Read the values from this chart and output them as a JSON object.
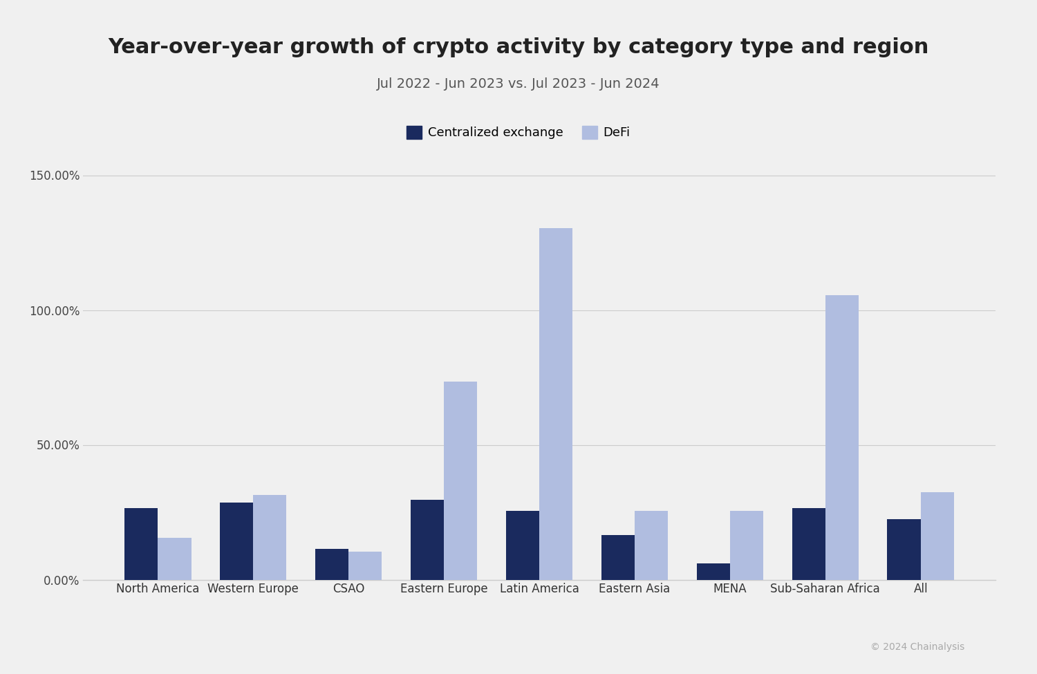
{
  "title": "Year-over-year growth of crypto activity by category type and region",
  "subtitle": "Jul 2022 - Jun 2023 vs. Jul 2023 - Jun 2024",
  "categories": [
    "North America",
    "Western Europe",
    "CSAO",
    "Eastern Europe",
    "Latin America",
    "Eastern Asia",
    "MENA",
    "Sub-Saharan Africa",
    "All"
  ],
  "centralized_exchange": [
    0.265,
    0.285,
    0.115,
    0.295,
    0.255,
    0.165,
    0.06,
    0.265,
    0.225
  ],
  "defi": [
    0.155,
    0.315,
    0.105,
    0.735,
    1.305,
    0.255,
    0.255,
    1.055,
    0.325
  ],
  "color_cex": "#1a2a5e",
  "color_defi": "#b0bde0",
  "background_color": "#f0f0f0",
  "grid_color": "#cccccc",
  "ylim": [
    0,
    1.55
  ],
  "yticks": [
    0.0,
    0.5,
    1.0,
    1.5
  ],
  "ytick_labels": [
    "0.00%",
    "50.00%",
    "100.00%",
    "150.00%"
  ],
  "legend_labels": [
    "Centralized exchange",
    "DeFi"
  ],
  "copyright": "© 2024 Chainalysis",
  "title_fontsize": 22,
  "subtitle_fontsize": 14,
  "tick_fontsize": 12,
  "legend_fontsize": 13
}
